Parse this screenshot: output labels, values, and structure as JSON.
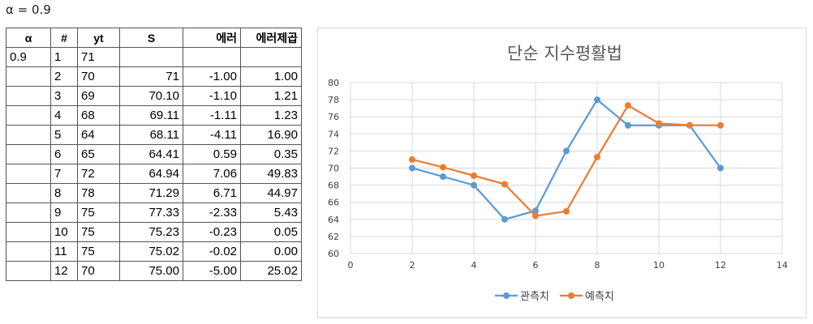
{
  "alpha_label": "α = 0.9",
  "table": {
    "headers": [
      "α",
      "#",
      "yt",
      "S",
      "에러",
      "에러제곱"
    ],
    "rows": [
      [
        "0.9",
        "1",
        "71",
        "",
        "",
        ""
      ],
      [
        "",
        "2",
        "70",
        "71",
        "-1.00",
        "1.00"
      ],
      [
        "",
        "3",
        "69",
        "70.10",
        "-1.10",
        "1.21"
      ],
      [
        "",
        "4",
        "68",
        "69.11",
        "-1.11",
        "1.23"
      ],
      [
        "",
        "5",
        "64",
        "68.11",
        "-4.11",
        "16.90"
      ],
      [
        "",
        "6",
        "65",
        "64.41",
        "0.59",
        "0.35"
      ],
      [
        "",
        "7",
        "72",
        "64.94",
        "7.06",
        "49.83"
      ],
      [
        "",
        "8",
        "78",
        "71.29",
        "6.71",
        "44.97"
      ],
      [
        "",
        "9",
        "75",
        "77.33",
        "-2.33",
        "5.43"
      ],
      [
        "",
        "10",
        "75",
        "75.23",
        "-0.23",
        "0.05"
      ],
      [
        "",
        "11",
        "75",
        "75.02",
        "-0.02",
        "0.00"
      ],
      [
        "",
        "12",
        "70",
        "75.00",
        "-5.00",
        "25.02"
      ]
    ]
  },
  "chart_data": {
    "type": "scatter",
    "title": "단순 지수평활법",
    "xlabel": "",
    "ylabel": "",
    "xlim": [
      0,
      14
    ],
    "ylim": [
      60,
      80
    ],
    "x_ticks": [
      0,
      2,
      4,
      6,
      8,
      10,
      12,
      14
    ],
    "y_ticks": [
      60,
      62,
      64,
      66,
      68,
      70,
      72,
      74,
      76,
      78,
      80
    ],
    "grid": true,
    "legend_position": "bottom",
    "series": [
      {
        "name": "관측치",
        "color": "#5b9bd5",
        "x": [
          2,
          3,
          4,
          5,
          6,
          7,
          8,
          9,
          10,
          11,
          12
        ],
        "y": [
          70,
          69,
          68,
          64,
          65,
          72,
          78,
          75,
          75,
          75,
          70
        ]
      },
      {
        "name": "예측치",
        "color": "#ed7d31",
        "x": [
          2,
          3,
          4,
          5,
          6,
          7,
          8,
          9,
          10,
          11,
          12
        ],
        "y": [
          71,
          70.1,
          69.11,
          68.11,
          64.41,
          64.94,
          71.29,
          77.33,
          75.23,
          75.02,
          75.0
        ]
      }
    ]
  }
}
